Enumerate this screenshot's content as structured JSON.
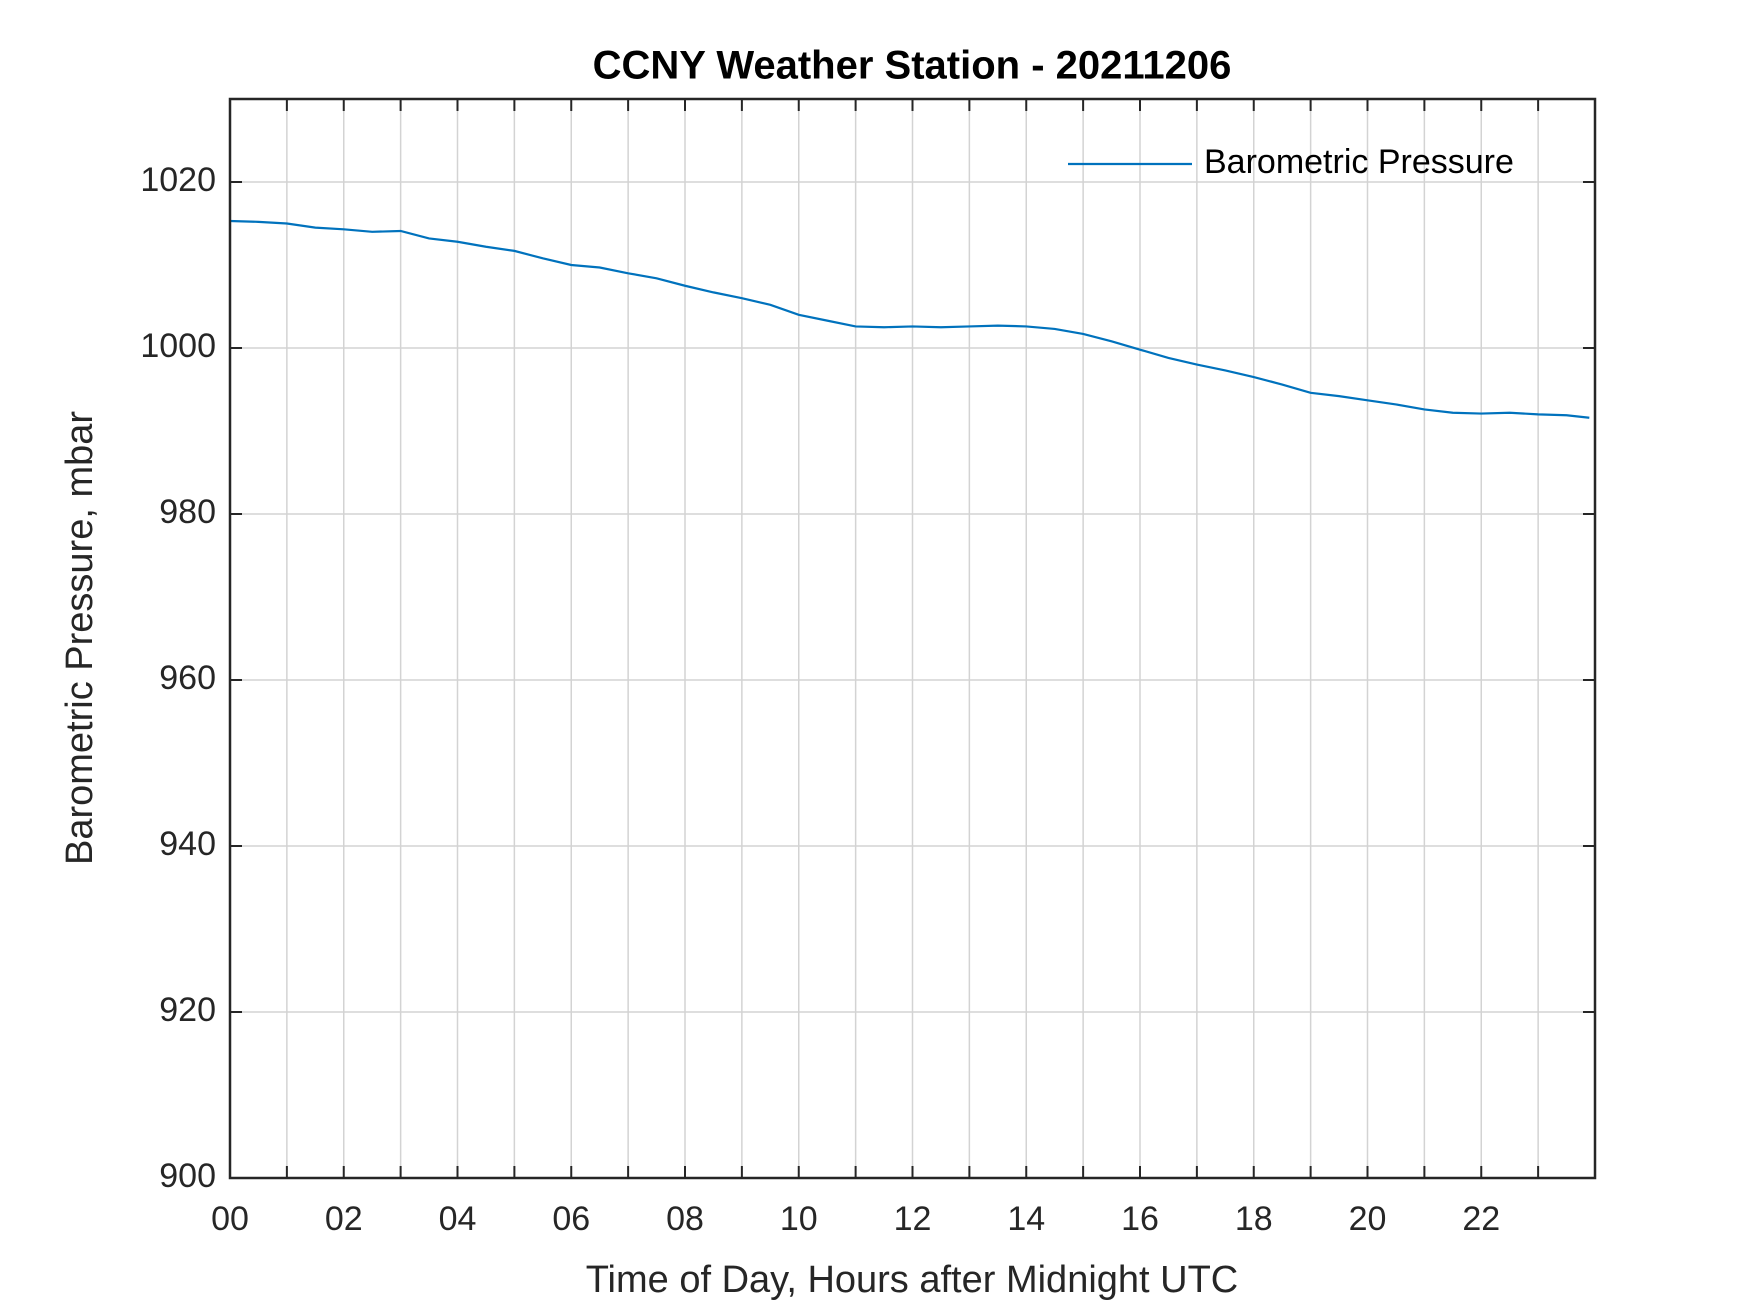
{
  "chart_data": {
    "type": "line",
    "title": "CCNY Weather Station - 20211206",
    "x_label": "Time of Day, Hours after Midnight UTC",
    "y_label": "Barometric Pressure, mbar",
    "x": [
      0,
      0.5,
      1,
      1.5,
      2,
      2.5,
      3,
      3.5,
      4,
      4.5,
      5,
      5.5,
      6,
      6.5,
      7,
      7.5,
      8,
      8.5,
      9,
      9.5,
      10,
      10.5,
      11,
      11.5,
      12,
      12.5,
      13,
      13.5,
      14,
      14.5,
      15,
      15.5,
      16,
      16.5,
      17,
      17.5,
      18,
      18.5,
      19,
      19.5,
      20,
      20.5,
      21,
      21.5,
      22,
      22.5,
      23,
      23.5,
      23.9
    ],
    "series": [
      {
        "name": "Barometric Pressure",
        "color": "#0072bd",
        "values": [
          1015.3,
          1015.2,
          1015.0,
          1014.5,
          1014.3,
          1014.0,
          1014.1,
          1013.2,
          1012.8,
          1012.2,
          1011.7,
          1010.8,
          1010.0,
          1009.7,
          1009.0,
          1008.4,
          1007.5,
          1006.7,
          1006.0,
          1005.2,
          1004.0,
          1003.3,
          1002.6,
          1002.5,
          1002.6,
          1002.5,
          1002.6,
          1002.7,
          1002.6,
          1002.3,
          1001.7,
          1000.8,
          999.8,
          998.8,
          998.0,
          997.3,
          996.5,
          995.6,
          994.6,
          994.2,
          993.7,
          993.2,
          992.6,
          992.2,
          992.1,
          992.2,
          992.0,
          991.9,
          991.6
        ]
      }
    ],
    "xlim": [
      0,
      24
    ],
    "xticks": [
      {
        "value": 0,
        "label": "00"
      },
      {
        "value": 2,
        "label": "02"
      },
      {
        "value": 4,
        "label": "04"
      },
      {
        "value": 6,
        "label": "06"
      },
      {
        "value": 8,
        "label": "08"
      },
      10,
      12,
      14,
      16,
      18,
      20,
      22
    ],
    "x_minor_ticks": [
      1,
      3,
      5,
      7,
      9,
      11,
      13,
      15,
      17,
      19,
      21,
      23
    ],
    "ylim": [
      900,
      1030
    ],
    "yticks": [
      900,
      920,
      940,
      960,
      980,
      1000,
      1020
    ],
    "grid": true,
    "legend": "top-right"
  }
}
